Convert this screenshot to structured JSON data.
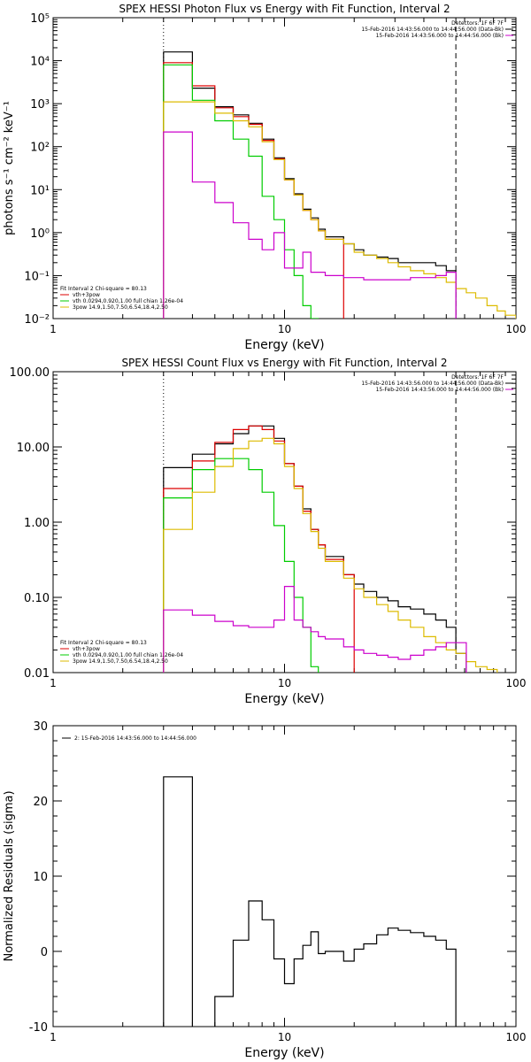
{
  "chart_data": [
    {
      "type": "line",
      "title": "SPEX HESSI Photon Flux vs Energy with Fit Function, Interval 2",
      "xlabel": "Energy (keV)",
      "ylabel": "photons s⁻¹ cm⁻² keV⁻¹",
      "xscale": "log",
      "yscale": "log",
      "xlim": [
        1,
        100
      ],
      "ylim": [
        0.01,
        100000
      ],
      "x_tick_labels": [
        "1",
        "10",
        "100"
      ],
      "y_tick_labels": [
        "10⁻²",
        "10⁻¹",
        "10⁰",
        "10¹",
        "10²",
        "10³",
        "10⁴",
        "10⁵"
      ],
      "grid": false,
      "vlines": [
        {
          "x": 3.0,
          "style": "dotted"
        },
        {
          "x": 55,
          "style": "dashed"
        }
      ],
      "legend_top": [
        {
          "text": "Detectors: 1F 6F 7F",
          "color": "#000000"
        },
        {
          "text": "15-Feb-2016 14:43:56.000 to 14:44:56.000 (Data-Bk)",
          "color": "#000000"
        },
        {
          "text": "15-Feb-2016 14:43:56.000 to 14:44:56.000 (Bk)",
          "color": "#cc00cc"
        }
      ],
      "legend_bottom": [
        {
          "text": "Fit Interval  2   Chi-square = 80.13",
          "color": "#000000"
        },
        {
          "text": "vth+3pow",
          "color": "#dd0000"
        },
        {
          "text": "vth 0.0294,0.920,1.00  full chian 1.26e-04",
          "color": "#00cc00"
        },
        {
          "text": "3pow 14.9,1.50,7.50,6.54,18.4,2.50",
          "color": "#ddbb00"
        }
      ],
      "edges": [
        3.0,
        3.5,
        4.0,
        4.5,
        5.0,
        5.5,
        6.0,
        6.5,
        7.0,
        7.5,
        8.0,
        8.5,
        9.0,
        9.5,
        10,
        11,
        12,
        13,
        14,
        15,
        16,
        18,
        20,
        22,
        25,
        28,
        31,
        35,
        40,
        45,
        50,
        55,
        61,
        67,
        75,
        83,
        90,
        100
      ],
      "series": [
        {
          "name": "15-Feb-2016 14:43:56.000 to 14:44:56.000 (Data-Bk)",
          "color": "#000000",
          "values": [
            16000,
            16000,
            2300,
            2300,
            850,
            850,
            550,
            550,
            350,
            350,
            150,
            150,
            55,
            55,
            18,
            8,
            3.5,
            2.2,
            1.2,
            0.8,
            0.8,
            0.55,
            0.4,
            0.3,
            0.27,
            0.25,
            0.2,
            0.2,
            0.2,
            0.17,
            0.13,
            null,
            null,
            null,
            null,
            null,
            null
          ]
        },
        {
          "name": "vth+3pow",
          "color": "#dd0000",
          "values": [
            9000,
            9000,
            2600,
            2600,
            800,
            800,
            500,
            500,
            330,
            330,
            140,
            140,
            52,
            52,
            17,
            7.5,
            3.3,
            2.0,
            1.1,
            0.7,
            0.7,
            null,
            null,
            null,
            null,
            null,
            null,
            null,
            null,
            null,
            null,
            null,
            null,
            null,
            null,
            null,
            null
          ]
        },
        {
          "name": "vth 0.0294,0.920,1.00  full chian 1.26e-04",
          "color": "#00cc00",
          "values": [
            8000,
            8000,
            1200,
            1200,
            400,
            400,
            150,
            150,
            60,
            60,
            7,
            7,
            2,
            2,
            0.4,
            0.1,
            0.02,
            0.01,
            null,
            null,
            null,
            null,
            null,
            null,
            null,
            null,
            null,
            null,
            null,
            null,
            null,
            null,
            null,
            null,
            null,
            null,
            null
          ]
        },
        {
          "name": "3pow 14.9,1.50,7.50,6.54,18.4,2.50",
          "color": "#ddbb00",
          "values": [
            1100,
            1100,
            1100,
            1100,
            600,
            600,
            400,
            400,
            290,
            290,
            130,
            130,
            50,
            50,
            17,
            7.5,
            3.3,
            2.0,
            1.1,
            0.7,
            0.7,
            0.55,
            0.35,
            0.3,
            0.25,
            0.2,
            0.16,
            0.13,
            0.11,
            0.09,
            0.07,
            0.05,
            0.04,
            0.03,
            0.02,
            0.015,
            0.012
          ]
        },
        {
          "name": "15-Feb-2016 14:43:56.000 to 14:44:56.000 (Bk)",
          "color": "#cc00cc",
          "values": [
            220,
            220,
            15,
            15,
            5,
            5,
            1.7,
            1.7,
            0.7,
            0.7,
            0.4,
            0.4,
            1.0,
            1.0,
            0.15,
            0.15,
            0.35,
            0.12,
            0.12,
            0.1,
            0.1,
            0.09,
            0.09,
            0.08,
            0.08,
            0.08,
            0.08,
            0.09,
            0.09,
            0.1,
            0.12,
            null,
            null,
            null,
            null,
            null,
            null
          ]
        }
      ]
    },
    {
      "type": "line",
      "title": "SPEX HESSI Count Flux vs Energy with Fit Function, Interval 2",
      "xlabel": "Energy (keV)",
      "ylabel": "",
      "xscale": "log",
      "yscale": "log",
      "xlim": [
        1,
        100
      ],
      "ylim": [
        0.01,
        100
      ],
      "x_tick_labels": [
        "1",
        "10",
        "100"
      ],
      "y_tick_labels": [
        "0.01",
        "0.10",
        "1.00",
        "10.00",
        "100.00"
      ],
      "grid": false,
      "vlines": [
        {
          "x": 3.0,
          "style": "dotted"
        },
        {
          "x": 55,
          "style": "dashed"
        }
      ],
      "legend_top": [
        {
          "text": "Detectors: 1F 6F 7F",
          "color": "#000000"
        },
        {
          "text": "15-Feb-2016 14:43:56.000 to 14:44:56.000 (Data-Bk)",
          "color": "#000000"
        },
        {
          "text": "15-Feb-2016 14:43:56.000 to 14:44:56.000 (Bk)",
          "color": "#cc00cc"
        }
      ],
      "legend_bottom": [
        {
          "text": "Fit Interval  2   Chi-square = 80.13",
          "color": "#000000"
        },
        {
          "text": "vth+3pow",
          "color": "#dd0000"
        },
        {
          "text": "vth 0.0294,0.920,1.00  full chian 1.26e-04",
          "color": "#00cc00"
        },
        {
          "text": "3pow 14.9,1.50,7.50,6.54,18.4,2.50",
          "color": "#ddbb00"
        }
      ],
      "edges": [
        3.0,
        3.5,
        4.0,
        4.5,
        5.0,
        5.5,
        6.0,
        6.5,
        7.0,
        7.5,
        8.0,
        8.5,
        9.0,
        9.5,
        10,
        11,
        12,
        13,
        14,
        15,
        16,
        18,
        20,
        22,
        25,
        28,
        31,
        35,
        40,
        45,
        50,
        55,
        61,
        67,
        75,
        83,
        90,
        100
      ],
      "series": [
        {
          "name": "15-Feb-2016 14:43:56.000 to 14:44:56.000 (Data-Bk)",
          "color": "#000000",
          "values": [
            5.3,
            5.3,
            8.0,
            8.0,
            11,
            11,
            15,
            15,
            19,
            19,
            19,
            19,
            13,
            13,
            6,
            3,
            1.5,
            0.8,
            0.5,
            0.35,
            0.35,
            0.2,
            0.15,
            0.12,
            0.1,
            0.09,
            0.075,
            0.07,
            0.06,
            0.05,
            0.04,
            0.018,
            null,
            null,
            null,
            null,
            null
          ]
        },
        {
          "name": "vth+3pow",
          "color": "#dd0000",
          "values": [
            2.8,
            2.8,
            6.5,
            6.5,
            11.5,
            11.5,
            17,
            17,
            19,
            19,
            17,
            17,
            12,
            12,
            6,
            3,
            1.4,
            0.8,
            0.5,
            0.32,
            0.32,
            0.2,
            null,
            null,
            null,
            null,
            null,
            null,
            null,
            null,
            null,
            null,
            null,
            null,
            null,
            null,
            null
          ]
        },
        {
          "name": "vth 0.0294,0.920,1.00  full chian 1.26e-04",
          "color": "#00cc00",
          "values": [
            2.1,
            2.1,
            5.0,
            5.0,
            7.0,
            7.0,
            7.0,
            7.0,
            5.0,
            5.0,
            2.5,
            2.5,
            0.9,
            0.9,
            0.3,
            0.1,
            0.04,
            0.012,
            null,
            null,
            null,
            null,
            null,
            null,
            null,
            null,
            null,
            null,
            null,
            null,
            null,
            null,
            null,
            null,
            null,
            null,
            null
          ]
        },
        {
          "name": "3pow 14.9,1.50,7.50,6.54,18.4,2.50",
          "color": "#ddbb00",
          "values": [
            0.8,
            0.8,
            2.5,
            2.5,
            5.5,
            5.5,
            9.5,
            9.5,
            12,
            12,
            13,
            13,
            11,
            11,
            5.5,
            2.8,
            1.3,
            0.75,
            0.45,
            0.3,
            0.3,
            0.18,
            0.13,
            0.1,
            0.08,
            0.065,
            0.05,
            0.04,
            0.03,
            0.025,
            0.02,
            0.018,
            0.014,
            0.012,
            0.011,
            null,
            null
          ]
        },
        {
          "name": "15-Feb-2016 14:43:56.000 to 14:44:56.000 (Bk)",
          "color": "#cc00cc",
          "values": [
            0.068,
            0.068,
            0.058,
            0.058,
            0.048,
            0.048,
            0.042,
            0.042,
            0.04,
            0.04,
            0.04,
            0.04,
            0.05,
            0.05,
            0.14,
            0.05,
            0.04,
            0.035,
            0.03,
            0.028,
            0.028,
            0.022,
            0.02,
            0.018,
            0.017,
            0.016,
            0.015,
            0.017,
            0.02,
            0.022,
            0.025,
            0.025,
            null,
            null,
            null,
            null,
            null
          ]
        }
      ]
    },
    {
      "type": "line",
      "title": "",
      "xlabel": "Energy (keV)",
      "ylabel": "Normalized Residuals (sigma)",
      "xscale": "log",
      "yscale": "linear",
      "xlim": [
        1,
        100
      ],
      "ylim": [
        -10,
        30
      ],
      "x_tick_labels": [
        "1",
        "10",
        "100"
      ],
      "y_tick_labels": [
        "-10",
        "0",
        "10",
        "20",
        "30"
      ],
      "grid": false,
      "legend": [
        {
          "text": "2: 15-Feb-2016 14:43:56.000 to 14:44:56.000",
          "color": "#000000"
        }
      ],
      "edges": [
        3.0,
        3.5,
        4.0,
        4.5,
        5.0,
        5.5,
        6.0,
        6.5,
        7.0,
        7.5,
        8.0,
        8.5,
        9.0,
        9.5,
        10,
        11,
        12,
        13,
        14,
        15,
        16,
        18,
        20,
        22,
        25,
        28,
        31,
        35,
        40,
        45,
        50,
        55
      ],
      "series": [
        {
          "name": "2: 15-Feb-2016 14:43:56.000 to 14:44:56.000",
          "color": "#000000",
          "values": [
            23.2,
            23.2,
            -10.3,
            -10.3,
            -6.0,
            -6.0,
            1.5,
            1.5,
            6.7,
            6.7,
            4.2,
            4.2,
            -1.0,
            -1.0,
            -4.3,
            -1.0,
            0.8,
            2.6,
            -0.3,
            0.0,
            0.0,
            -1.3,
            0.3,
            1.0,
            2.2,
            3.1,
            2.8,
            2.5,
            2.0,
            1.5,
            0.3
          ]
        }
      ]
    }
  ]
}
